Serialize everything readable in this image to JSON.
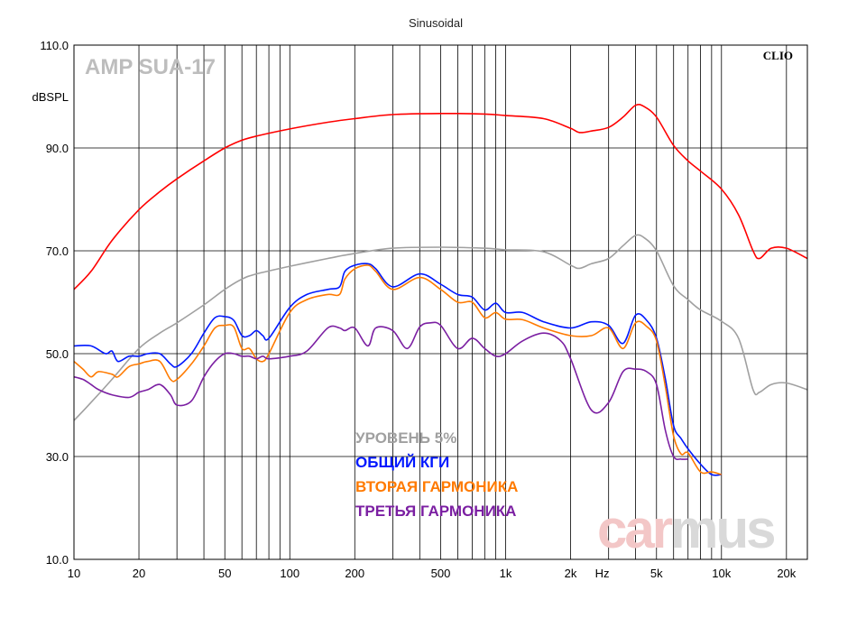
{
  "chart_data": {
    "type": "line",
    "title": "Sinusoidal",
    "ylabel": "dBSPL",
    "xunit": "Hz",
    "xscale": "log",
    "xlim": [
      10,
      25000
    ],
    "ylim": [
      10,
      110
    ],
    "grid": true,
    "brand_label": "AMP SUA-17",
    "software_label": "CLIO",
    "watermark": {
      "part1": "car",
      "part2": "mus",
      "color1": "#f3c7c7",
      "color2": "#d9d9d9"
    },
    "x_ticks": [
      {
        "v": 10,
        "label": "10"
      },
      {
        "v": 20,
        "label": "20"
      },
      {
        "v": 50,
        "label": "50"
      },
      {
        "v": 100,
        "label": "100"
      },
      {
        "v": 200,
        "label": "200"
      },
      {
        "v": 500,
        "label": "500"
      },
      {
        "v": 1000,
        "label": "1k"
      },
      {
        "v": 2000,
        "label": "2k"
      },
      {
        "v": 5000,
        "label": "5k"
      },
      {
        "v": 10000,
        "label": "10k"
      },
      {
        "v": 20000,
        "label": "20k"
      }
    ],
    "y_ticks": [
      {
        "v": 110,
        "label": "110.0"
      },
      {
        "v": 90,
        "label": "90.0"
      },
      {
        "v": 70,
        "label": "70.0"
      },
      {
        "v": 50,
        "label": "50.0"
      },
      {
        "v": 30,
        "label": "30.0"
      },
      {
        "v": 10,
        "label": "10.0"
      }
    ],
    "legend": [
      {
        "label": "УРОВЕНЬ 5%",
        "color": "#a0a0a0"
      },
      {
        "label": "ОБЩИЙ КГИ",
        "color": "#0018ff"
      },
      {
        "label": "ВТОРАЯ ГАРМОНИКА",
        "color": "#ff7a00"
      },
      {
        "label": "ТРЕТЬЯ ГАРМОНИКА",
        "color": "#7b1fa2"
      }
    ],
    "series": [
      {
        "color": "#ff0000",
        "x": [
          10,
          12,
          15,
          20,
          25,
          30,
          40,
          50,
          60,
          70,
          100,
          150,
          200,
          300,
          500,
          800,
          1000,
          1500,
          2000,
          2200,
          2500,
          3000,
          3500,
          4000,
          4400,
          5000,
          6000,
          7000,
          8000,
          10000,
          12000,
          14000,
          15000,
          17000,
          20000,
          25000
        ],
        "y": [
          62.5,
          66,
          72,
          78,
          81.5,
          84,
          87.5,
          90,
          91.5,
          92.3,
          93.7,
          95,
          95.7,
          96.5,
          96.7,
          96.6,
          96.3,
          95.7,
          93.8,
          93,
          93.3,
          94,
          96,
          98.3,
          98,
          96,
          90.5,
          87.5,
          85.5,
          82,
          77,
          70,
          68.5,
          70.5,
          70.5,
          68.5
        ]
      },
      {
        "color": "#a0a0a0",
        "x": [
          10,
          12,
          15,
          20,
          25,
          30,
          40,
          50,
          60,
          70,
          100,
          150,
          200,
          300,
          500,
          800,
          1000,
          1500,
          2000,
          2200,
          2500,
          3000,
          3500,
          4000,
          4400,
          5000,
          6000,
          7000,
          8000,
          10000,
          12000,
          14000,
          15000,
          17000,
          20000,
          25000
        ],
        "y": [
          37,
          40.5,
          45,
          51,
          54,
          56,
          59.5,
          62.5,
          64.5,
          65.5,
          67,
          68.5,
          69.5,
          70.5,
          70.7,
          70.5,
          70.2,
          69.8,
          67.2,
          66.6,
          67.5,
          68.5,
          71,
          73,
          72.5,
          70,
          63.2,
          60.5,
          58.5,
          56.3,
          53,
          43,
          42.5,
          44,
          44.3,
          43
        ]
      },
      {
        "color": "#0018ff",
        "x": [
          10,
          12,
          14,
          15,
          16,
          18,
          20,
          22,
          25,
          28,
          30,
          35,
          40,
          45,
          50,
          55,
          60,
          65,
          70,
          75,
          80,
          100,
          120,
          150,
          170,
          180,
          200,
          230,
          250,
          300,
          400,
          500,
          600,
          700,
          800,
          900,
          1000,
          1200,
          1500,
          2000,
          2500,
          3000,
          3500,
          4000,
          4500,
          5000,
          5500,
          6000,
          6500,
          7000,
          8000,
          9000,
          10000
        ],
        "y": [
          51.5,
          51.5,
          50,
          50.5,
          48.5,
          49.5,
          49.5,
          50,
          50,
          48,
          47.5,
          50,
          54,
          57,
          57.2,
          56.5,
          53.5,
          53.5,
          54.5,
          53.5,
          53,
          59,
          61.5,
          62.5,
          63,
          66,
          67.2,
          67.5,
          66.5,
          63,
          65.5,
          63.5,
          61.5,
          61,
          58.5,
          59.8,
          58,
          58,
          56.2,
          55,
          56.2,
          55.5,
          52,
          57.5,
          56.5,
          53,
          45,
          36,
          33.5,
          31.5,
          28.5,
          26.5,
          26.5
        ]
      },
      {
        "color": "#ff7a00",
        "x": [
          10,
          11,
          12,
          13,
          15,
          16,
          18,
          20,
          22,
          25,
          28,
          30,
          35,
          40,
          45,
          50,
          55,
          60,
          65,
          70,
          75,
          80,
          100,
          120,
          150,
          170,
          180,
          200,
          230,
          250,
          300,
          400,
          500,
          600,
          700,
          800,
          900,
          1000,
          1200,
          1500,
          2000,
          2500,
          3000,
          3500,
          4000,
          4500,
          5000,
          5500,
          6000,
          6500,
          7000,
          8000,
          9000,
          10000
        ],
        "y": [
          48.5,
          47,
          45.5,
          46.5,
          46,
          45.5,
          47.5,
          48,
          48.5,
          48.5,
          45,
          45,
          48,
          51.5,
          55,
          55.5,
          55.2,
          51,
          51,
          49,
          48.5,
          50,
          58,
          60.5,
          61.5,
          61.5,
          64.5,
          66.5,
          67.2,
          66,
          62.5,
          64.8,
          62.5,
          60,
          60,
          57,
          58,
          56.7,
          56.6,
          55,
          53.5,
          53.5,
          55,
          51,
          56,
          55.3,
          52.5,
          43.5,
          34,
          30.5,
          30.7,
          27,
          27,
          26.5
        ]
      },
      {
        "color": "#7b1fa2",
        "x": [
          10,
          11,
          12,
          13,
          15,
          18,
          20,
          22,
          25,
          28,
          30,
          35,
          40,
          45,
          50,
          55,
          60,
          65,
          70,
          75,
          80,
          100,
          120,
          150,
          170,
          180,
          200,
          230,
          250,
          300,
          350,
          400,
          450,
          500,
          600,
          700,
          800,
          900,
          1000,
          1200,
          1500,
          1800,
          2000,
          2500,
          3000,
          3500,
          4000,
          4500,
          5000,
          5500,
          6000,
          6500,
          7000
        ],
        "y": [
          45.5,
          45,
          44,
          43,
          42,
          41.5,
          42.5,
          43,
          44,
          42,
          40,
          40.8,
          45.5,
          48.5,
          50,
          50,
          49.5,
          49.5,
          49,
          49.5,
          49,
          49.5,
          50.5,
          55,
          55,
          54.5,
          55,
          51.5,
          55,
          54.5,
          51,
          55.2,
          56,
          55.5,
          51,
          53,
          51,
          49.5,
          50,
          52.5,
          54,
          52.5,
          49,
          39,
          40.5,
          46.5,
          47,
          46.5,
          44,
          35,
          30,
          29.5,
          29.5
        ]
      }
    ]
  }
}
